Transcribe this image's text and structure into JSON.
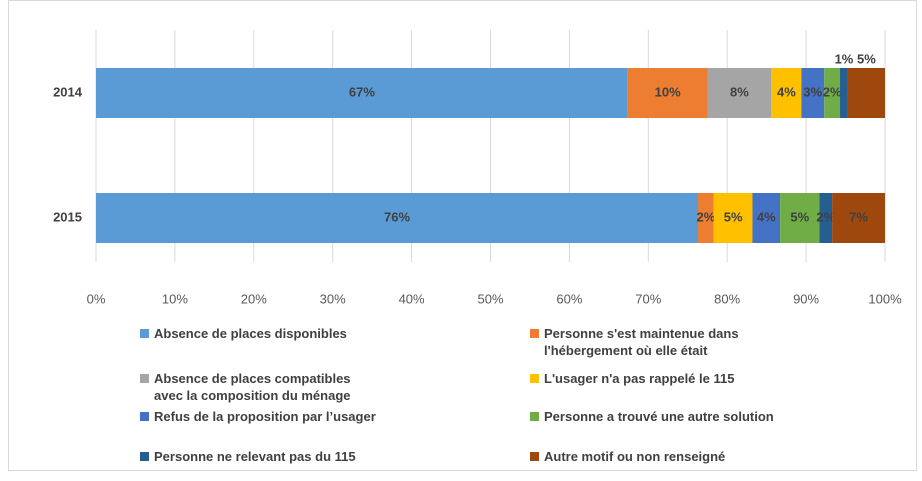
{
  "chart_data": {
    "type": "stacked_barh",
    "categories": [
      "2014",
      "2015"
    ],
    "series": [
      {
        "name": "Absence de places disponibles",
        "color": "#5b9bd5",
        "values": [
          67.4,
          76.3
        ],
        "value_labels": [
          "67%",
          "76%"
        ]
      },
      {
        "name": "Personne s'est maintenue dans l'hébergement où elle était",
        "color": "#ed7d31",
        "values": [
          10.1,
          2.0
        ],
        "value_labels": [
          "10%",
          "2%"
        ]
      },
      {
        "name": "Absence de places compatibles avec la composition du ménage",
        "color": "#a5a5a5",
        "values": [
          8.1,
          null
        ],
        "value_labels": [
          "8%",
          null
        ]
      },
      {
        "name": "L'usager n'a pas rappelé le 115",
        "color": "#ffc000",
        "values": [
          3.8,
          4.9
        ],
        "value_labels": [
          "4%",
          "5%"
        ]
      },
      {
        "name": "Refus de la proposition par l’usager",
        "color": "#4472c4",
        "values": [
          2.9,
          3.5
        ],
        "value_labels": [
          "3%",
          "4%"
        ]
      },
      {
        "name": "Personne a trouvé une autre solution",
        "color": "#70ad47",
        "values": [
          2.0,
          5.0
        ],
        "value_labels": [
          "2%",
          "5%"
        ]
      },
      {
        "name": "Personne ne relevant pas du 115",
        "color": "#255e91",
        "values": [
          1.0,
          1.6
        ],
        "value_labels": [
          "1%",
          "2%"
        ]
      },
      {
        "name": "Autre motif ou non renseigné",
        "color": "#9e480e",
        "values": [
          4.7,
          6.7
        ],
        "value_labels": [
          "5%",
          "7%"
        ]
      }
    ],
    "xlim": [
      0,
      100
    ],
    "xticks": [
      {
        "value": 0,
        "label": "0%"
      },
      {
        "value": 10,
        "label": "10%"
      },
      {
        "value": 20,
        "label": "20%"
      },
      {
        "value": 30,
        "label": "30%"
      },
      {
        "value": 40,
        "label": "40%"
      },
      {
        "value": 50,
        "label": "50%"
      },
      {
        "value": 60,
        "label": "60%"
      },
      {
        "value": 70,
        "label": "70%"
      },
      {
        "value": 80,
        "label": "80%"
      },
      {
        "value": 90,
        "label": "90%"
      },
      {
        "value": 100,
        "label": "100%"
      }
    ],
    "grid": true,
    "legend": "bottom"
  }
}
